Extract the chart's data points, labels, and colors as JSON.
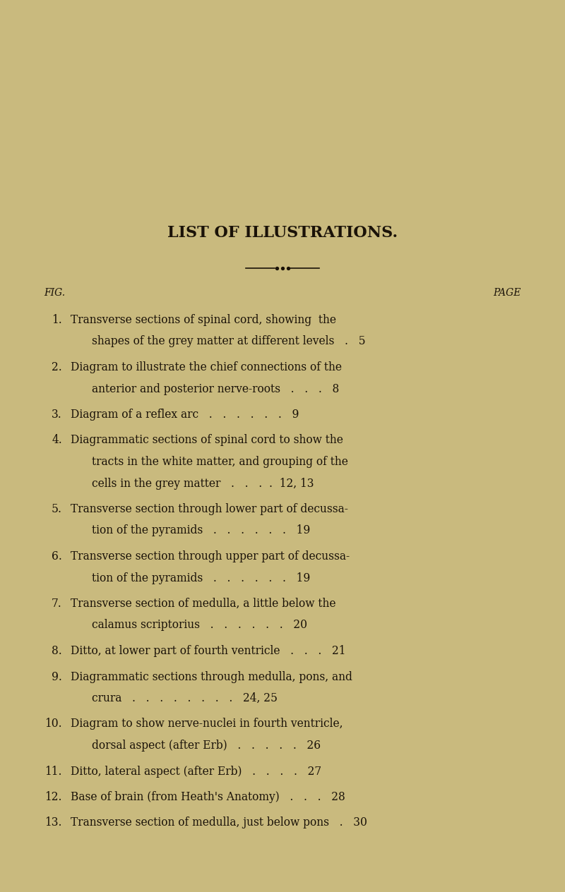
{
  "background_color": "#c9ba7e",
  "title": "LIST OF ILLUSTRATIONS.",
  "title_fontsize": 16,
  "text_color": "#1a1208",
  "body_fontsize": 11.2,
  "header_fontsize": 10,
  "fig_label": "FIG.",
  "page_label": "PAGE",
  "entry_data": [
    {
      "num": "1.",
      "lines": [
        "Transverse sections of spinal cord, showing  the",
        "shapes of the grey matter at different levels   .   5"
      ]
    },
    {
      "num": "2.",
      "lines": [
        "Diagram to illustrate the chief connections of the",
        "anterior and posterior nerve-roots   .   .   .   8"
      ]
    },
    {
      "num": "3.",
      "lines": [
        "Diagram of a reflex arc   .   .   .   .   .   .   9"
      ]
    },
    {
      "num": "4.",
      "lines": [
        "Diagrammatic sections of spinal cord to show the",
        "tracts in the white matter, and grouping of the",
        "cells in the grey matter   .   .   .  .  12, 13"
      ]
    },
    {
      "num": "5.",
      "lines": [
        "Transverse section through lower part of decussa-",
        "tion of the pyramids   .   .   .   .   .   .   19"
      ]
    },
    {
      "num": "6.",
      "lines": [
        "Transverse section through upper part of decussa-",
        "tion of the pyramids   .   .   .   .   .   .   19"
      ]
    },
    {
      "num": "7.",
      "lines": [
        "Transverse section of medulla, a little below the",
        "calamus scriptorius   .   .   .   .   .   .   20"
      ]
    },
    {
      "num": "8.",
      "lines": [
        "Ditto, at lower part of fourth ventricle   .   .   .   21"
      ]
    },
    {
      "num": "9.",
      "lines": [
        "Diagrammatic sections through medulla, pons, and",
        "crura   .   .   .   .   .   .   .   .   24, 25"
      ]
    },
    {
      "num": "10.",
      "lines": [
        "Diagram to show nerve-nuclei in fourth ventricle,",
        "dorsal aspect (after Erb)   .   .   .   .   .   26"
      ]
    },
    {
      "num": "11.",
      "lines": [
        "Ditto, lateral aspect (after Erb)   .   .   .   .   27"
      ]
    },
    {
      "num": "12.",
      "lines": [
        "Base of brain (from Heath's Anatomy)   .   .   .   28"
      ]
    },
    {
      "num": "13.",
      "lines": [
        "Transverse section of medulla, just below pons   .   30"
      ]
    }
  ]
}
